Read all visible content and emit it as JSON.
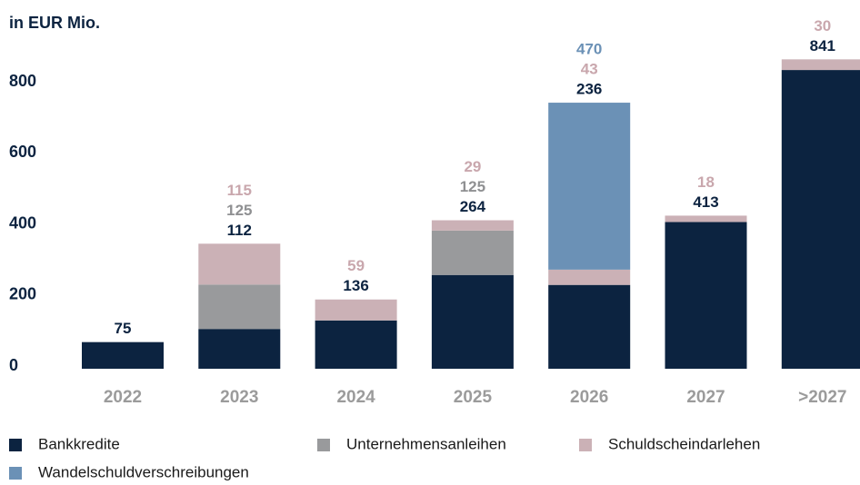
{
  "chart_data": {
    "type": "bar",
    "stacked": true,
    "title": "in EUR Mio.",
    "categories": [
      "2022",
      "2023",
      "2024",
      "2025",
      "2026",
      "2027",
      ">2027"
    ],
    "series": [
      {
        "name": "Bankkredite",
        "color": "#0c2340",
        "label_color": "#0c2340",
        "values": [
          75,
          112,
          136,
          264,
          236,
          413,
          841
        ]
      },
      {
        "name": "Unternehmensanleihen",
        "color": "#999a9c",
        "label_color": "#8f9092",
        "values": [
          null,
          125,
          null,
          125,
          null,
          null,
          null
        ]
      },
      {
        "name": "Schuldscheindarlehen",
        "color": "#cbb1b6",
        "label_color": "#c9a7ad",
        "values": [
          null,
          115,
          59,
          29,
          43,
          18,
          30
        ]
      },
      {
        "name": "Wandelschuldverschreibungen",
        "color": "#6b91b6",
        "label_color": "#6b91b6",
        "values": [
          null,
          null,
          null,
          null,
          470,
          null,
          null
        ]
      }
    ],
    "ylim": [
      0,
      900
    ],
    "yticks": [
      0,
      200,
      400,
      600,
      800
    ],
    "grid": false
  }
}
